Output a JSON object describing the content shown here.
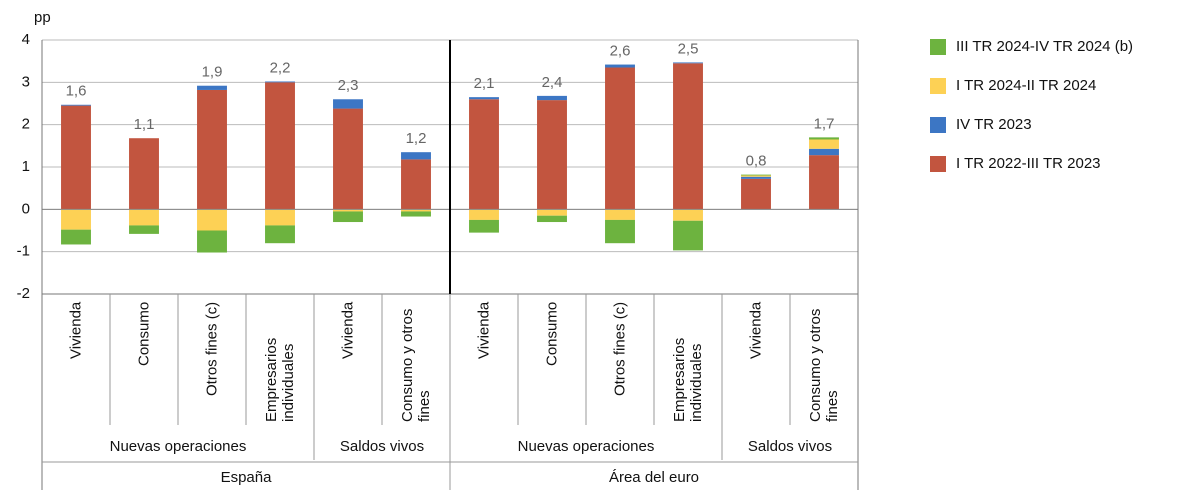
{
  "chart_data": {
    "type": "stacked_bar",
    "ylabel": "pp",
    "ylim": [
      -2,
      4
    ],
    "yticks": [
      4,
      3,
      2,
      1,
      0,
      -1,
      -2
    ],
    "grid": true,
    "category_groups": [
      {
        "name": "España",
        "groups": [
          {
            "name": "Nuevas operaciones",
            "categories": [
              "Vivienda",
              "Consumo",
              "Otros fines (c)",
              "Empresarios individuales"
            ]
          },
          {
            "name": "Saldos vivos",
            "categories": [
              "Vivienda",
              "Consumo y otros fines"
            ]
          }
        ]
      },
      {
        "name": "Área del euro",
        "groups": [
          {
            "name": "Nuevas operaciones",
            "categories": [
              "Vivienda",
              "Consumo",
              "Otros fines (c)",
              "Empresarios individuales"
            ]
          },
          {
            "name": "Saldos vivos",
            "categories": [
              "Vivienda",
              "Consumo y otros fines"
            ]
          }
        ]
      }
    ],
    "series": [
      {
        "name": "III TR 2024-IV TR 2024 (b)",
        "color": "#6db33f",
        "values": [
          -0.35,
          -0.2,
          -0.52,
          -0.42,
          -0.25,
          -0.12,
          -0.3,
          -0.15,
          -0.55,
          -0.7,
          0.02,
          0.05
        ]
      },
      {
        "name": "I TR 2024-II TR 2024",
        "color": "#fdd155",
        "values": [
          -0.48,
          -0.38,
          -0.5,
          -0.38,
          -0.05,
          -0.05,
          -0.25,
          -0.15,
          -0.25,
          -0.27,
          0.03,
          0.22
        ]
      },
      {
        "name": "IV TR 2023",
        "color": "#3c76c4",
        "values": [
          0.02,
          0,
          0.1,
          0.02,
          0.22,
          0.17,
          0.05,
          0.1,
          0.07,
          0.02,
          0.05,
          0.15
        ]
      },
      {
        "name": "I TR 2022-III TR 2023",
        "color": "#c2553f",
        "values": [
          2.45,
          1.68,
          2.82,
          3.0,
          2.38,
          1.18,
          2.6,
          2.58,
          3.35,
          3.45,
          0.72,
          1.28
        ]
      }
    ],
    "totals": {
      "values": [
        1.6,
        1.1,
        1.9,
        2.2,
        2.3,
        1.2,
        2.1,
        2.4,
        2.6,
        2.5,
        0.8,
        1.7
      ],
      "value_labels": [
        "1,6",
        "1,1",
        "1,9",
        "2,2",
        "2,3",
        "1,2",
        "2,1",
        "2,4",
        "2,6",
        "2,5",
        "0,8",
        "1,7"
      ]
    }
  }
}
